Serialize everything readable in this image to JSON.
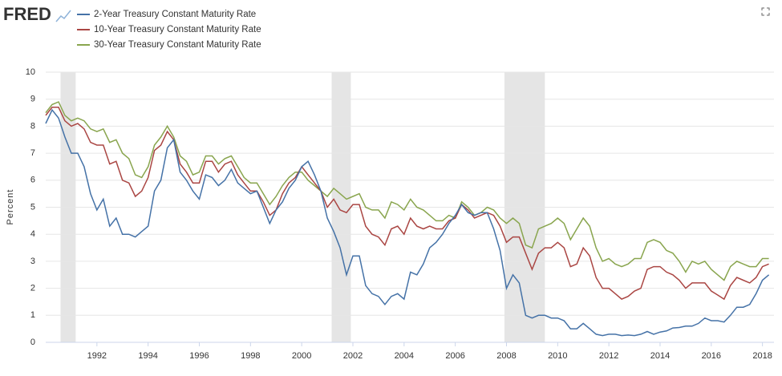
{
  "chart_data": {
    "type": "line",
    "logo": "FRED",
    "ylabel": "Percent",
    "x": [
      1990,
      1990.25,
      1990.5,
      1990.75,
      1991,
      1991.25,
      1991.5,
      1991.75,
      1992,
      1992.25,
      1992.5,
      1992.75,
      1993,
      1993.25,
      1993.5,
      1993.75,
      1994,
      1994.25,
      1994.5,
      1994.75,
      1995,
      1995.25,
      1995.5,
      1995.75,
      1996,
      1996.25,
      1996.5,
      1996.75,
      1997,
      1997.25,
      1997.5,
      1997.75,
      1998,
      1998.25,
      1998.5,
      1998.75,
      1999,
      1999.25,
      1999.5,
      1999.75,
      2000,
      2000.25,
      2000.5,
      2000.75,
      2001,
      2001.25,
      2001.5,
      2001.75,
      2002,
      2002.25,
      2002.5,
      2002.75,
      2003,
      2003.25,
      2003.5,
      2003.75,
      2004,
      2004.25,
      2004.5,
      2004.75,
      2005,
      2005.25,
      2005.5,
      2005.75,
      2006,
      2006.25,
      2006.5,
      2006.75,
      2007,
      2007.25,
      2007.5,
      2007.75,
      2008,
      2008.25,
      2008.5,
      2008.75,
      2009,
      2009.25,
      2009.5,
      2009.75,
      2010,
      2010.25,
      2010.5,
      2010.75,
      2011,
      2011.25,
      2011.5,
      2011.75,
      2012,
      2012.25,
      2012.5,
      2012.75,
      2013,
      2013.25,
      2013.5,
      2013.75,
      2014,
      2014.25,
      2014.5,
      2014.75,
      2015,
      2015.25,
      2015.5,
      2015.75,
      2016,
      2016.25,
      2016.5,
      2016.75,
      2017,
      2017.25,
      2017.5,
      2017.75,
      2018,
      2018.25
    ],
    "series": [
      {
        "name": "2-Year Treasury Constant Maturity Rate",
        "color": "#4572a7",
        "values": [
          8.1,
          8.6,
          8.3,
          7.6,
          7.0,
          7.0,
          6.5,
          5.5,
          4.9,
          5.3,
          4.3,
          4.6,
          4.0,
          4.0,
          3.9,
          4.1,
          4.3,
          5.6,
          6.0,
          7.2,
          7.5,
          6.3,
          6.0,
          5.6,
          5.3,
          6.2,
          6.1,
          5.8,
          6.0,
          6.4,
          5.9,
          5.7,
          5.5,
          5.6,
          5.0,
          4.4,
          4.9,
          5.2,
          5.7,
          6.0,
          6.5,
          6.7,
          6.2,
          5.6,
          4.6,
          4.1,
          3.5,
          2.5,
          3.2,
          3.2,
          2.1,
          1.8,
          1.7,
          1.4,
          1.7,
          1.8,
          1.6,
          2.6,
          2.5,
          2.9,
          3.5,
          3.7,
          4.0,
          4.4,
          4.7,
          5.1,
          4.8,
          4.7,
          4.8,
          4.8,
          4.2,
          3.4,
          2.0,
          2.5,
          2.2,
          1.0,
          0.9,
          1.0,
          1.0,
          0.9,
          0.9,
          0.8,
          0.5,
          0.5,
          0.7,
          0.5,
          0.3,
          0.25,
          0.3,
          0.3,
          0.25,
          0.27,
          0.25,
          0.3,
          0.4,
          0.3,
          0.38,
          0.42,
          0.53,
          0.55,
          0.6,
          0.6,
          0.7,
          0.9,
          0.8,
          0.8,
          0.75,
          1.0,
          1.3,
          1.3,
          1.4,
          1.8,
          2.3,
          2.5
        ]
      },
      {
        "name": "10-Year Treasury Constant Maturity Rate",
        "color": "#aa4643",
        "values": [
          8.4,
          8.7,
          8.7,
          8.2,
          8.0,
          8.1,
          7.9,
          7.4,
          7.3,
          7.3,
          6.6,
          6.7,
          6.0,
          5.9,
          5.4,
          5.6,
          6.1,
          7.1,
          7.3,
          7.8,
          7.5,
          6.6,
          6.3,
          5.9,
          5.9,
          6.7,
          6.7,
          6.3,
          6.6,
          6.7,
          6.2,
          5.9,
          5.6,
          5.6,
          5.2,
          4.7,
          4.9,
          5.5,
          5.9,
          6.1,
          6.5,
          6.2,
          5.9,
          5.6,
          5.0,
          5.3,
          4.9,
          4.8,
          5.1,
          5.1,
          4.3,
          4.0,
          3.9,
          3.6,
          4.2,
          4.3,
          4.0,
          4.6,
          4.3,
          4.2,
          4.3,
          4.2,
          4.2,
          4.5,
          4.6,
          5.1,
          4.9,
          4.6,
          4.7,
          4.8,
          4.7,
          4.3,
          3.7,
          3.9,
          3.9,
          3.3,
          2.7,
          3.3,
          3.5,
          3.5,
          3.7,
          3.5,
          2.8,
          2.9,
          3.5,
          3.2,
          2.4,
          2.0,
          2.0,
          1.8,
          1.6,
          1.7,
          1.9,
          2.0,
          2.7,
          2.8,
          2.8,
          2.6,
          2.5,
          2.3,
          2.0,
          2.2,
          2.2,
          2.2,
          1.9,
          1.75,
          1.6,
          2.1,
          2.4,
          2.3,
          2.2,
          2.4,
          2.8,
          2.9
        ]
      },
      {
        "name": "30-Year Treasury Constant Maturity Rate",
        "color": "#89a54e",
        "values": [
          8.5,
          8.8,
          8.9,
          8.4,
          8.2,
          8.3,
          8.2,
          7.9,
          7.8,
          7.9,
          7.4,
          7.5,
          7.0,
          6.8,
          6.2,
          6.1,
          6.5,
          7.3,
          7.6,
          8.0,
          7.6,
          6.9,
          6.7,
          6.2,
          6.3,
          6.9,
          6.9,
          6.6,
          6.8,
          6.9,
          6.5,
          6.1,
          5.9,
          5.9,
          5.5,
          5.1,
          5.4,
          5.8,
          6.1,
          6.3,
          6.3,
          6.0,
          5.8,
          5.6,
          5.4,
          5.7,
          5.5,
          5.3,
          5.4,
          5.5,
          5.0,
          4.9,
          4.9,
          4.6,
          5.2,
          5.1,
          4.9,
          5.3,
          5.0,
          4.9,
          4.7,
          4.5,
          4.5,
          4.7,
          4.6,
          5.2,
          5.0,
          4.7,
          4.8,
          5.0,
          4.9,
          4.6,
          4.4,
          4.6,
          4.4,
          3.6,
          3.5,
          4.2,
          4.3,
          4.4,
          4.6,
          4.4,
          3.8,
          4.2,
          4.6,
          4.3,
          3.5,
          3.0,
          3.1,
          2.9,
          2.8,
          2.9,
          3.1,
          3.1,
          3.7,
          3.8,
          3.7,
          3.4,
          3.3,
          3.0,
          2.6,
          3.0,
          2.9,
          3.0,
          2.7,
          2.5,
          2.3,
          2.8,
          3.0,
          2.9,
          2.8,
          2.8,
          3.1,
          3.1
        ]
      }
    ],
    "recessions": [
      [
        1990.58,
        1991.17
      ],
      [
        2001.17,
        2001.92
      ],
      [
        2007.92,
        2009.5
      ]
    ],
    "xlim": [
      1990,
      2018.45
    ],
    "xticks": [
      1992,
      1994,
      1996,
      1998,
      2000,
      2002,
      2004,
      2006,
      2008,
      2010,
      2012,
      2014,
      2016,
      2018
    ],
    "ylim": [
      0,
      10
    ],
    "yticks": [
      0,
      1,
      2,
      3,
      4,
      5,
      6,
      7,
      8,
      9,
      10
    ],
    "grid": true
  }
}
